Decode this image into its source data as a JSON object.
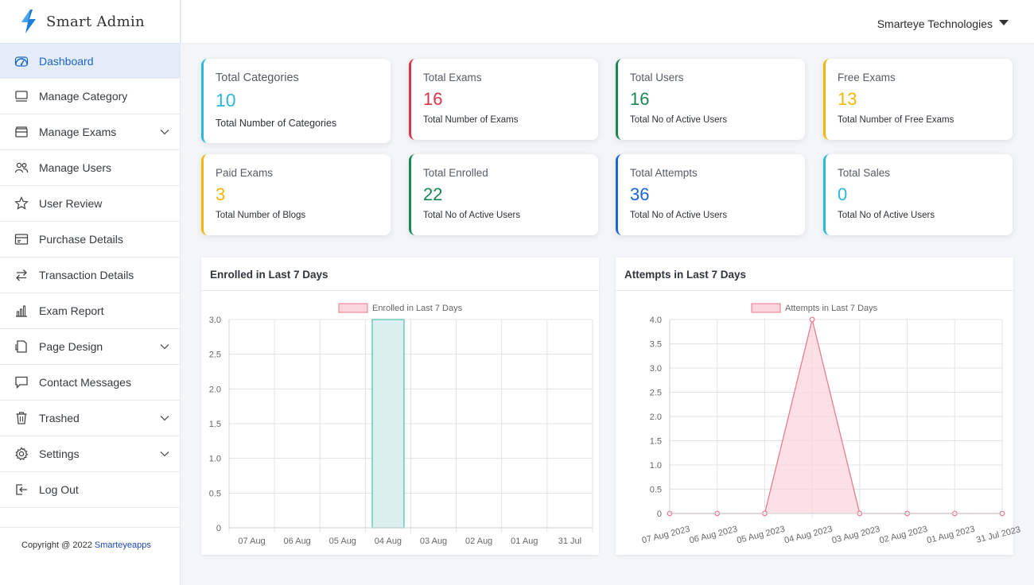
{
  "brand": {
    "name": "Smart Admin"
  },
  "header": {
    "company": "Smarteye Technologies"
  },
  "sidebar": {
    "items": [
      {
        "label": "Dashboard",
        "icon": "dashboard-icon",
        "has_submenu": false
      },
      {
        "label": "Manage Category",
        "icon": "category-icon",
        "has_submenu": false
      },
      {
        "label": "Manage Exams",
        "icon": "exams-icon",
        "has_submenu": true
      },
      {
        "label": "Manage Users",
        "icon": "users-icon",
        "has_submenu": false
      },
      {
        "label": "User Review",
        "icon": "star-icon",
        "has_submenu": false
      },
      {
        "label": "Purchase Details",
        "icon": "card-icon",
        "has_submenu": false
      },
      {
        "label": "Transaction Details",
        "icon": "transfer-icon",
        "has_submenu": false
      },
      {
        "label": "Exam Report",
        "icon": "bar-chart-icon",
        "has_submenu": false
      },
      {
        "label": "Page Design",
        "icon": "page-icon",
        "has_submenu": true
      },
      {
        "label": "Contact Messages",
        "icon": "message-icon",
        "has_submenu": false
      },
      {
        "label": "Trashed",
        "icon": "trash-icon",
        "has_submenu": true
      },
      {
        "label": "Settings",
        "icon": "gear-icon",
        "has_submenu": true
      },
      {
        "label": "Log Out",
        "icon": "logout-icon",
        "has_submenu": false
      }
    ],
    "active": "Dashboard"
  },
  "footer": {
    "copyright": "Copyright @ 2022 ",
    "link": "Smarteyeapps"
  },
  "stats": [
    {
      "title": "Total Categories",
      "value": "10",
      "sub": "Total Number of Categories",
      "color": "#2bb9d8"
    },
    {
      "title": "Total Exams",
      "value": "16",
      "sub": "Total Number of Exams",
      "color": "#dc3545"
    },
    {
      "title": "Total Users",
      "value": "16",
      "sub": "Total No of Active Users",
      "color": "#198754"
    },
    {
      "title": "Free Exams",
      "value": "13",
      "sub": "Total Number of Free Exams",
      "color": "#f2b705"
    },
    {
      "title": "Paid Exams",
      "value": "3",
      "sub": "Total Number of Blogs",
      "color": "#f2b705"
    },
    {
      "title": "Total Enrolled",
      "value": "22",
      "sub": "Total No of Active Users",
      "color": "#198754"
    },
    {
      "title": "Total Attempts",
      "value": "36",
      "sub": "Total No of Active Users",
      "color": "#1a66d6"
    },
    {
      "title": "Total Sales",
      "value": "0",
      "sub": "Total No of Active Users",
      "color": "#2bb9d8"
    }
  ],
  "colors": {
    "accent": "#1c64c8",
    "series_border": "#e8768b",
    "series_fill": "#fbd5dc",
    "bar_fill": "#d9f0ee",
    "bar_border": "#4dbdaf"
  },
  "panels": {
    "enrolled_title": "Enrolled in Last 7 Days",
    "attempts_title": "Attempts in Last 7 Days"
  },
  "chart_data": [
    {
      "type": "bar",
      "title": "Enrolled in Last 7 Days",
      "legend": "Enrolled in Last 7 Days",
      "legend_position": "top",
      "categories": [
        "07 Aug",
        "06 Aug",
        "05 Aug",
        "04 Aug",
        "03 Aug",
        "02 Aug",
        "01 Aug",
        "31 Jul"
      ],
      "values": [
        0,
        0,
        0,
        3,
        0,
        0,
        0,
        0
      ],
      "ylim": [
        0,
        3
      ],
      "yticks": [
        "0",
        "0.5",
        "1.0",
        "1.5",
        "2.0",
        "2.5",
        "3.0"
      ],
      "grid": true
    },
    {
      "type": "area",
      "title": "Attempts in Last 7 Days",
      "legend": "Attempts in Last 7 Days",
      "legend_position": "top",
      "categories": [
        "07 Aug 2023",
        "06 Aug 2023",
        "05 Aug 2023",
        "04 Aug 2023",
        "03 Aug 2023",
        "02 Aug 2023",
        "01 Aug 2023",
        "31 Jul 2023"
      ],
      "values": [
        0,
        0,
        0,
        4,
        0,
        0,
        0,
        0
      ],
      "ylim": [
        0,
        4
      ],
      "yticks": [
        "0",
        "0.5",
        "1.0",
        "1.5",
        "2.0",
        "2.5",
        "3.0",
        "3.5",
        "4.0"
      ],
      "grid": true
    }
  ]
}
